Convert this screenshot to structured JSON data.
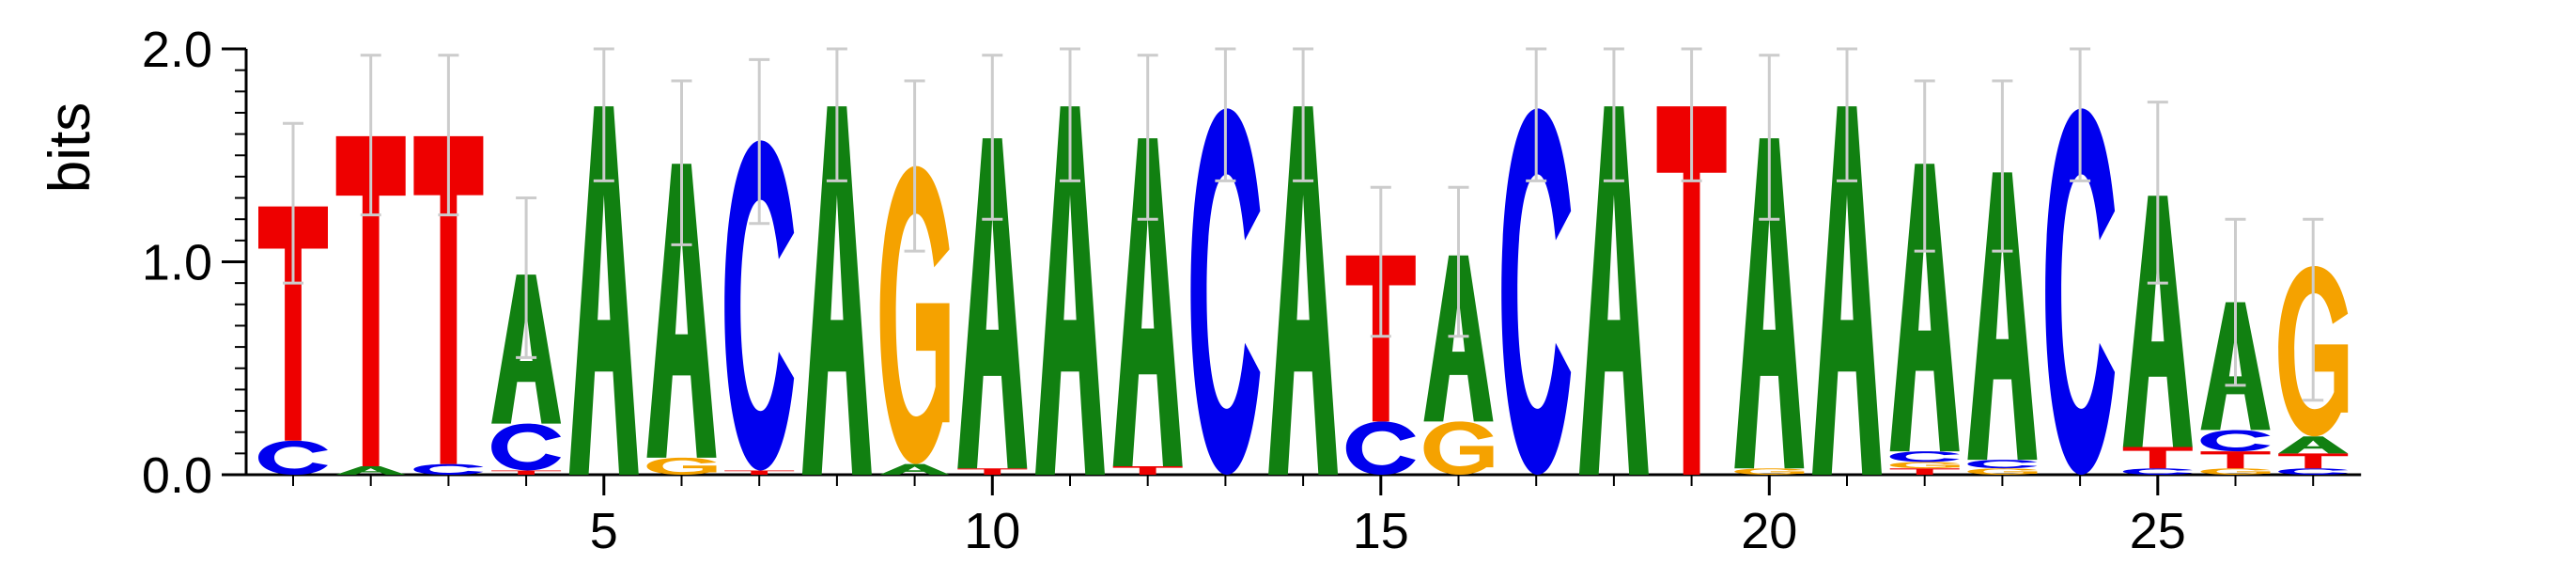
{
  "chart_data": {
    "type": "sequence-logo",
    "ylabel": "bits",
    "ylim": [
      0,
      2.0
    ],
    "y_ticks": [
      {
        "value": 0.0,
        "label": "0.0"
      },
      {
        "value": 1.0,
        "label": "1.0"
      },
      {
        "value": 2.0,
        "label": "2.0"
      }
    ],
    "x_ticks": [
      {
        "value": 5,
        "label": "5"
      },
      {
        "value": 10,
        "label": "10"
      },
      {
        "value": 15,
        "label": "15"
      },
      {
        "value": 20,
        "label": "20"
      },
      {
        "value": 25,
        "label": "25"
      }
    ],
    "colors": {
      "A": "#118011",
      "C": "#0000ee",
      "G": "#f5a200",
      "T": "#ee0000"
    },
    "error_bar_color": "#cccccc",
    "positions": [
      {
        "pos": 1,
        "error": [
          0.9,
          1.65
        ],
        "stack": [
          [
            "C",
            0.16
          ],
          [
            "T",
            1.1
          ]
        ]
      },
      {
        "pos": 2,
        "error": [
          1.22,
          1.97
        ],
        "stack": [
          [
            "A",
            0.04
          ],
          [
            "T",
            1.55
          ]
        ]
      },
      {
        "pos": 3,
        "error": [
          1.22,
          1.97
        ],
        "stack": [
          [
            "C",
            0.05
          ],
          [
            "T",
            1.54
          ]
        ]
      },
      {
        "pos": 4,
        "error": [
          0.55,
          1.3
        ],
        "stack": [
          [
            "T",
            0.02
          ],
          [
            "C",
            0.22
          ],
          [
            "A",
            0.7
          ]
        ]
      },
      {
        "pos": 5,
        "error": [
          1.38,
          2.0
        ],
        "stack": [
          [
            "A",
            1.73
          ]
        ]
      },
      {
        "pos": 6,
        "error": [
          1.08,
          1.85
        ],
        "stack": [
          [
            "G",
            0.08
          ],
          [
            "A",
            1.38
          ]
        ]
      },
      {
        "pos": 7,
        "error": [
          1.18,
          1.95
        ],
        "stack": [
          [
            "T",
            0.02
          ],
          [
            "C",
            1.55
          ]
        ]
      },
      {
        "pos": 8,
        "error": [
          1.38,
          2.0
        ],
        "stack": [
          [
            "A",
            1.73
          ]
        ]
      },
      {
        "pos": 9,
        "error": [
          1.05,
          1.85
        ],
        "stack": [
          [
            "A",
            0.05
          ],
          [
            "G",
            1.4
          ]
        ]
      },
      {
        "pos": 10,
        "error": [
          1.2,
          1.97
        ],
        "stack": [
          [
            "T",
            0.03
          ],
          [
            "A",
            1.55
          ]
        ]
      },
      {
        "pos": 11,
        "error": [
          1.38,
          2.0
        ],
        "stack": [
          [
            "A",
            1.73
          ]
        ]
      },
      {
        "pos": 12,
        "error": [
          1.2,
          1.97
        ],
        "stack": [
          [
            "T",
            0.04
          ],
          [
            "A",
            1.54
          ]
        ]
      },
      {
        "pos": 13,
        "error": [
          1.38,
          2.0
        ],
        "stack": [
          [
            "C",
            1.72
          ]
        ]
      },
      {
        "pos": 14,
        "error": [
          1.38,
          2.0
        ],
        "stack": [
          [
            "A",
            1.73
          ]
        ]
      },
      {
        "pos": 15,
        "error": [
          0.65,
          1.35
        ],
        "stack": [
          [
            "C",
            0.25
          ],
          [
            "T",
            0.78
          ]
        ]
      },
      {
        "pos": 16,
        "error": [
          0.65,
          1.35
        ],
        "stack": [
          [
            "G",
            0.25
          ],
          [
            "A",
            0.78
          ]
        ]
      },
      {
        "pos": 17,
        "error": [
          1.38,
          2.0
        ],
        "stack": [
          [
            "C",
            1.72
          ]
        ]
      },
      {
        "pos": 18,
        "error": [
          1.38,
          2.0
        ],
        "stack": [
          [
            "A",
            1.73
          ]
        ]
      },
      {
        "pos": 19,
        "error": [
          1.38,
          2.0
        ],
        "stack": [
          [
            "T",
            1.73
          ]
        ]
      },
      {
        "pos": 20,
        "error": [
          1.2,
          1.97
        ],
        "stack": [
          [
            "G",
            0.03
          ],
          [
            "A",
            1.55
          ]
        ]
      },
      {
        "pos": 21,
        "error": [
          1.38,
          2.0
        ],
        "stack": [
          [
            "A",
            1.73
          ]
        ]
      },
      {
        "pos": 22,
        "error": [
          1.05,
          1.85
        ],
        "stack": [
          [
            "T",
            0.03
          ],
          [
            "G",
            0.03
          ],
          [
            "C",
            0.05
          ],
          [
            "A",
            1.35
          ]
        ]
      },
      {
        "pos": 23,
        "error": [
          1.05,
          1.85
        ],
        "stack": [
          [
            "G",
            0.03
          ],
          [
            "C",
            0.04
          ],
          [
            "A",
            1.35
          ]
        ]
      },
      {
        "pos": 24,
        "error": [
          1.38,
          2.0
        ],
        "stack": [
          [
            "C",
            1.72
          ]
        ]
      },
      {
        "pos": 25,
        "error": [
          0.9,
          1.75
        ],
        "stack": [
          [
            "C",
            0.03
          ],
          [
            "T",
            0.1
          ],
          [
            "A",
            1.18
          ]
        ]
      },
      {
        "pos": 26,
        "error": [
          0.42,
          1.2
        ],
        "stack": [
          [
            "G",
            0.03
          ],
          [
            "T",
            0.08
          ],
          [
            "C",
            0.1
          ],
          [
            "A",
            0.6
          ]
        ]
      },
      {
        "pos": 27,
        "error": [
          0.35,
          1.2
        ],
        "stack": [
          [
            "C",
            0.03
          ],
          [
            "T",
            0.07
          ],
          [
            "A",
            0.08
          ],
          [
            "G",
            0.8
          ]
        ]
      }
    ]
  }
}
